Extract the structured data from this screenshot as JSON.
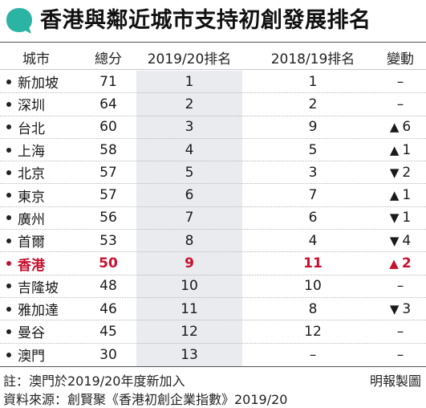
{
  "title": "香港與鄰近城市支持初創發展排名",
  "colors": {
    "accent_bubble": "#2bb3a3",
    "highlight_row": "#c8102e",
    "highlight_column": "#e9ebee"
  },
  "headers": {
    "city": "城市",
    "score": "總分",
    "rank_2019_20": "2019/20排名",
    "rank_2018_19": "2018/19排名",
    "change": "變動"
  },
  "rows": [
    {
      "city": "新加坡",
      "score": "71",
      "rank_2019_20": "1",
      "rank_2018_19": "1",
      "arrow": "",
      "change": "–"
    },
    {
      "city": "深圳",
      "score": "64",
      "rank_2019_20": "2",
      "rank_2018_19": "2",
      "arrow": "",
      "change": "–"
    },
    {
      "city": "台北",
      "score": "60",
      "rank_2019_20": "3",
      "rank_2018_19": "9",
      "arrow": "▲",
      "change": "6"
    },
    {
      "city": "上海",
      "score": "58",
      "rank_2019_20": "4",
      "rank_2018_19": "5",
      "arrow": "▲",
      "change": "1"
    },
    {
      "city": "北京",
      "score": "57",
      "rank_2019_20": "5",
      "rank_2018_19": "3",
      "arrow": "▼",
      "change": "2"
    },
    {
      "city": "東京",
      "score": "57",
      "rank_2019_20": "6",
      "rank_2018_19": "7",
      "arrow": "▲",
      "change": "1"
    },
    {
      "city": "廣州",
      "score": "56",
      "rank_2019_20": "7",
      "rank_2018_19": "6",
      "arrow": "▼",
      "change": "1"
    },
    {
      "city": "首爾",
      "score": "53",
      "rank_2019_20": "8",
      "rank_2018_19": "4",
      "arrow": "▼",
      "change": "4"
    },
    {
      "city": "香港",
      "score": "50",
      "rank_2019_20": "9",
      "rank_2018_19": "11",
      "arrow": "▲",
      "change": "2",
      "highlight": true
    },
    {
      "city": "吉隆坡",
      "score": "48",
      "rank_2019_20": "10",
      "rank_2018_19": "10",
      "arrow": "",
      "change": "–"
    },
    {
      "city": "雅加達",
      "score": "46",
      "rank_2019_20": "11",
      "rank_2018_19": "8",
      "arrow": "▼",
      "change": "3"
    },
    {
      "city": "曼谷",
      "score": "45",
      "rank_2019_20": "12",
      "rank_2018_19": "12",
      "arrow": "",
      "change": "–"
    },
    {
      "city": "澳門",
      "score": "30",
      "rank_2019_20": "13",
      "rank_2018_19": "–",
      "arrow": "",
      "change": "–"
    }
  ],
  "footer": {
    "note": "註：澳門於2019/20年度新加入",
    "source": "資料來源：創賢聚《香港初創企業指數》2019/20",
    "credit": "明報製圖"
  }
}
